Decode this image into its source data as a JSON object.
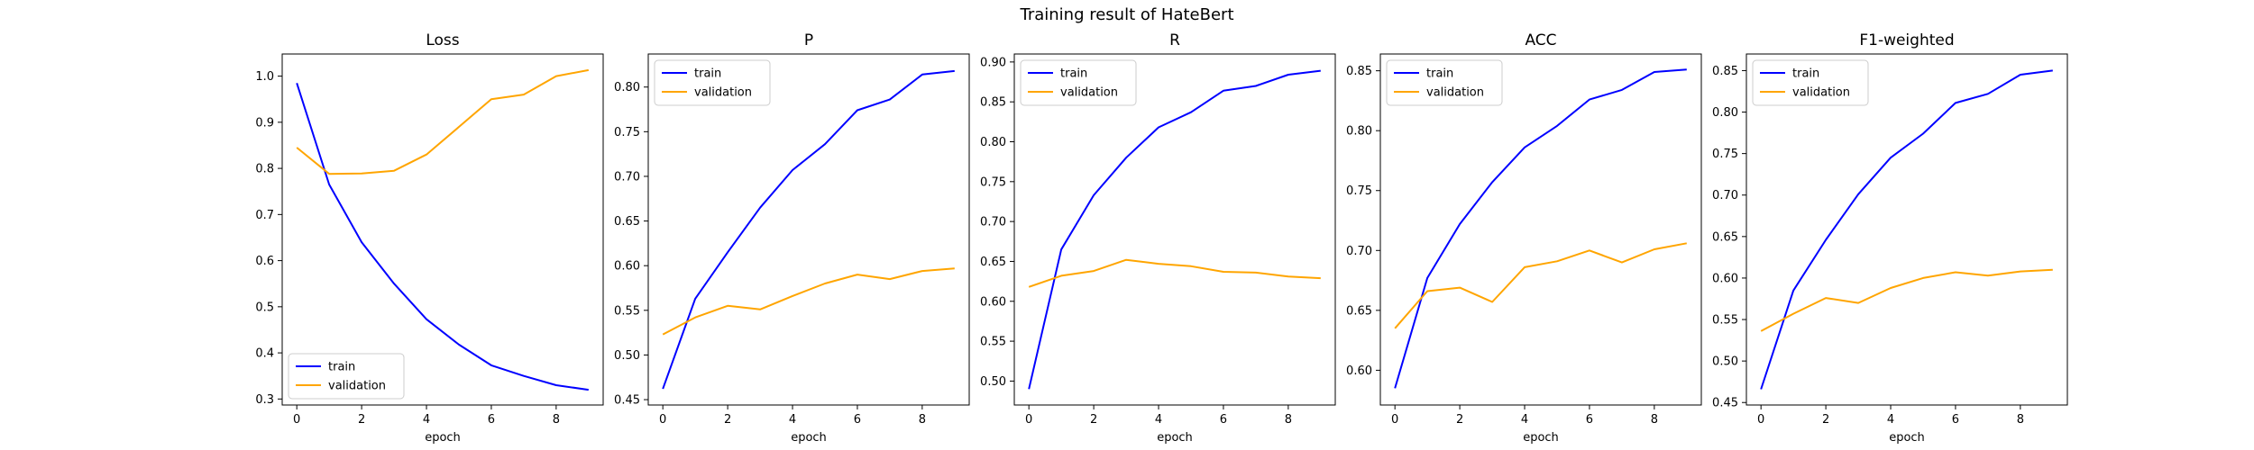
{
  "figure": {
    "title": "Training result of HateBert"
  },
  "colors": {
    "train": "#0000ff",
    "validation": "#ffa500"
  },
  "chart_data": [
    {
      "type": "line",
      "title": "Loss",
      "xlabel": "epoch",
      "ylabel": "",
      "x": [
        0,
        1,
        2,
        3,
        4,
        5,
        6,
        7,
        8,
        9
      ],
      "xticks": [
        0,
        2,
        4,
        6,
        8
      ],
      "xlim": [
        -0.45,
        9.45
      ],
      "ylim": [
        0.287,
        1.048
      ],
      "yticks": [
        0.3,
        0.4,
        0.5,
        0.6,
        0.7,
        0.8,
        0.9,
        1.0
      ],
      "ytick_labels": [
        "0.3",
        "0.4",
        "0.5",
        "0.6",
        "0.7",
        "0.8",
        "0.9",
        "1.0"
      ],
      "legend": "lower-left",
      "series": [
        {
          "name": "train",
          "values": [
            0.985,
            0.765,
            0.64,
            0.55,
            0.473,
            0.418,
            0.373,
            0.35,
            0.33,
            0.32
          ]
        },
        {
          "name": "validation",
          "values": [
            0.845,
            0.788,
            0.789,
            0.795,
            0.83,
            0.89,
            0.95,
            0.96,
            1.0,
            1.013
          ]
        }
      ]
    },
    {
      "type": "line",
      "title": "P",
      "xlabel": "epoch",
      "ylabel": "",
      "x": [
        0,
        1,
        2,
        3,
        4,
        5,
        6,
        7,
        8,
        9
      ],
      "xticks": [
        0,
        2,
        4,
        6,
        8
      ],
      "xlim": [
        -0.45,
        9.45
      ],
      "ylim": [
        0.444,
        0.837
      ],
      "yticks": [
        0.45,
        0.5,
        0.55,
        0.6,
        0.65,
        0.7,
        0.75,
        0.8
      ],
      "ytick_labels": [
        "0.45",
        "0.50",
        "0.55",
        "0.60",
        "0.65",
        "0.70",
        "0.75",
        "0.80"
      ],
      "legend": "upper-left",
      "series": [
        {
          "name": "train",
          "values": [
            0.462,
            0.563,
            0.615,
            0.665,
            0.707,
            0.736,
            0.774,
            0.786,
            0.814,
            0.818
          ]
        },
        {
          "name": "validation",
          "values": [
            0.523,
            0.542,
            0.555,
            0.551,
            0.566,
            0.58,
            0.59,
            0.585,
            0.594,
            0.597
          ]
        }
      ]
    },
    {
      "type": "line",
      "title": "R",
      "xlabel": "epoch",
      "ylabel": "",
      "x": [
        0,
        1,
        2,
        3,
        4,
        5,
        6,
        7,
        8,
        9
      ],
      "xticks": [
        0,
        2,
        4,
        6,
        8
      ],
      "xlim": [
        -0.45,
        9.45
      ],
      "ylim": [
        0.47,
        0.91
      ],
      "yticks": [
        0.5,
        0.55,
        0.6,
        0.65,
        0.7,
        0.75,
        0.8,
        0.85,
        0.9
      ],
      "ytick_labels": [
        "0.50",
        "0.55",
        "0.60",
        "0.65",
        "0.70",
        "0.75",
        "0.80",
        "0.85",
        "0.90"
      ],
      "legend": "upper-left",
      "series": [
        {
          "name": "train",
          "values": [
            0.49,
            0.665,
            0.733,
            0.78,
            0.818,
            0.837,
            0.864,
            0.87,
            0.884,
            0.889
          ]
        },
        {
          "name": "validation",
          "values": [
            0.618,
            0.632,
            0.638,
            0.652,
            0.647,
            0.644,
            0.637,
            0.636,
            0.631,
            0.629
          ]
        }
      ]
    },
    {
      "type": "line",
      "title": "ACC",
      "xlabel": "epoch",
      "ylabel": "",
      "x": [
        0,
        1,
        2,
        3,
        4,
        5,
        6,
        7,
        8,
        9
      ],
      "xticks": [
        0,
        2,
        4,
        6,
        8
      ],
      "xlim": [
        -0.45,
        9.45
      ],
      "ylim": [
        0.571,
        0.864
      ],
      "yticks": [
        0.6,
        0.65,
        0.7,
        0.75,
        0.8,
        0.85
      ],
      "ytick_labels": [
        "0.60",
        "0.65",
        "0.70",
        "0.75",
        "0.80",
        "0.85"
      ],
      "legend": "upper-left",
      "series": [
        {
          "name": "train",
          "values": [
            0.585,
            0.677,
            0.722,
            0.757,
            0.786,
            0.804,
            0.826,
            0.834,
            0.849,
            0.851
          ]
        },
        {
          "name": "validation",
          "values": [
            0.635,
            0.666,
            0.669,
            0.657,
            0.686,
            0.691,
            0.7,
            0.69,
            0.701,
            0.706
          ]
        }
      ]
    },
    {
      "type": "line",
      "title": "F1-weighted",
      "xlabel": "epoch",
      "ylabel": "",
      "x": [
        0,
        1,
        2,
        3,
        4,
        5,
        6,
        7,
        8,
        9
      ],
      "xticks": [
        0,
        2,
        4,
        6,
        8
      ],
      "xlim": [
        -0.45,
        9.45
      ],
      "ylim": [
        0.447,
        0.87
      ],
      "yticks": [
        0.45,
        0.5,
        0.55,
        0.6,
        0.65,
        0.7,
        0.75,
        0.8,
        0.85
      ],
      "ytick_labels": [
        "0.45",
        "0.50",
        "0.55",
        "0.60",
        "0.65",
        "0.70",
        "0.75",
        "0.80",
        "0.85"
      ],
      "legend": "upper-left",
      "series": [
        {
          "name": "train",
          "values": [
            0.466,
            0.585,
            0.646,
            0.701,
            0.745,
            0.774,
            0.811,
            0.822,
            0.845,
            0.85
          ]
        },
        {
          "name": "validation",
          "values": [
            0.536,
            0.557,
            0.576,
            0.57,
            0.588,
            0.6,
            0.607,
            0.603,
            0.608,
            0.61
          ]
        }
      ]
    }
  ]
}
